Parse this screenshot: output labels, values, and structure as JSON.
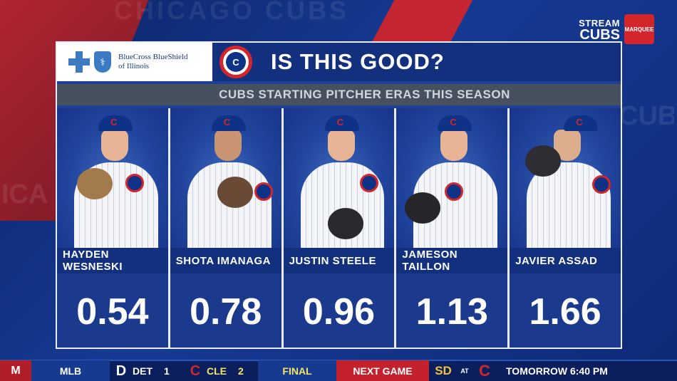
{
  "background": {
    "watermark_top": "CHICAGO CUBS",
    "watermark_side": "CUBS",
    "watermark_left": "ICA"
  },
  "broadcaster": {
    "line1": "STREAM",
    "line2": "CUBS",
    "logo_text": "MARQUEE"
  },
  "sponsor": {
    "line1": "BlueCross BlueShield",
    "line2": "of Illinois",
    "shield_glyph": "⚕"
  },
  "header": {
    "team_logo_glyph": "C",
    "title": "IS THIS GOOD?",
    "subtitle": "CUBS STARTING PITCHER ERAS THIS SEASON"
  },
  "players": [
    {
      "name": "HAYDEN WESNESKI",
      "era": "0.54"
    },
    {
      "name": "SHOTA IMANAGA",
      "era": "0.78"
    },
    {
      "name": "JUSTIN STEELE",
      "era": "0.96"
    },
    {
      "name": "JAMESON TAILLON",
      "era": "1.13"
    },
    {
      "name": "JAVIER ASSAD",
      "era": "1.66"
    }
  ],
  "ticker": {
    "logo": "M",
    "league": "MLB",
    "away_icon": "D",
    "away_team": "DET",
    "away_score": "1",
    "home_icon": "C",
    "home_team": "CLE",
    "home_score": "2",
    "status": "FINAL",
    "next_label": "NEXT GAME",
    "next_away_icon": "SD",
    "next_at": "AT",
    "next_home_icon": "C",
    "next_time": "TOMORROW 6:40 PM"
  },
  "colors": {
    "cubs_blue": "#0e3386",
    "cubs_red": "#d3252c",
    "panel_blue": "#1b3a8e",
    "subtitle_gray": "#46505e"
  }
}
